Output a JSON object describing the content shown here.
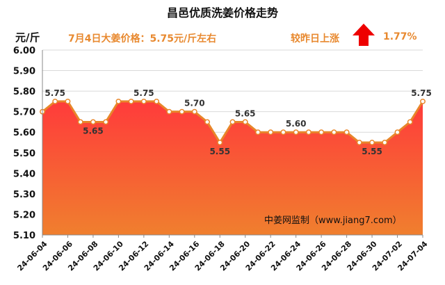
{
  "title": "昌邑优质洗姜价格走势",
  "unit": "元/斤",
  "price_note": "7月4日大姜价格：5.75元/斤左右",
  "change_label": "较昨日上涨",
  "change_value": "1.77%",
  "change_direction": "up",
  "source_note": "中姜网监制（www.jiang7.com）",
  "colors": {
    "line": "#e8862a",
    "fill_top": "#ff3b3b",
    "fill_bottom": "#f07f2e",
    "text_accent": "#e8892f",
    "arrow": "#ee0000"
  },
  "chart_data": {
    "type": "area",
    "ylim": [
      5.1,
      6.0
    ],
    "yticks": [
      "5.10",
      "5.20",
      "5.30",
      "5.40",
      "5.50",
      "5.60",
      "5.70",
      "5.80",
      "5.90",
      "6.00"
    ],
    "xtick_labels": [
      "24-06-04",
      "24-06-06",
      "24-06-08",
      "24-06-10",
      "24-06-12",
      "24-06-14",
      "24-06-16",
      "24-06-18",
      "24-06-20",
      "24-06-22",
      "24-06-24",
      "24-06-26",
      "24-06-28",
      "24-06-30",
      "24-07-02",
      "24-07-04"
    ],
    "values": [
      5.7,
      5.75,
      5.75,
      5.65,
      5.65,
      5.65,
      5.75,
      5.75,
      5.75,
      5.75,
      5.7,
      5.7,
      5.7,
      5.65,
      5.55,
      5.65,
      5.65,
      5.6,
      5.6,
      5.6,
      5.6,
      5.6,
      5.6,
      5.6,
      5.6,
      5.55,
      5.55,
      5.55,
      5.6,
      5.65,
      5.75
    ],
    "data_labels": [
      {
        "index": 1,
        "text": "5.75",
        "pos": "above"
      },
      {
        "index": 4,
        "text": "5.65",
        "pos": "below"
      },
      {
        "index": 8,
        "text": "5.75",
        "pos": "above"
      },
      {
        "index": 12,
        "text": "5.70",
        "pos": "above"
      },
      {
        "index": 14,
        "text": "5.55",
        "pos": "below"
      },
      {
        "index": 16,
        "text": "5.65",
        "pos": "above"
      },
      {
        "index": 20,
        "text": "5.60",
        "pos": "above"
      },
      {
        "index": 26,
        "text": "5.55",
        "pos": "below"
      },
      {
        "index": 30,
        "text": "5.75",
        "pos": "above"
      }
    ],
    "grid": "horizontal"
  }
}
